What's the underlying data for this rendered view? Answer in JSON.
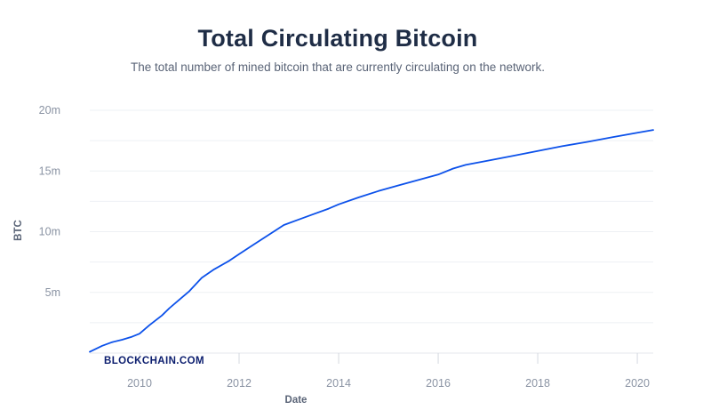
{
  "header": {
    "title": "Total Circulating Bitcoin",
    "subtitle": "The total number of mined bitcoin that are currently circulating on the network."
  },
  "watermark": "BLOCKCHAIN.COM",
  "chart_data": {
    "type": "line",
    "title": "Total Circulating Bitcoin",
    "subtitle": "The total number of mined bitcoin that are currently circulating on the network.",
    "xlabel": "Date",
    "ylabel": "BTC",
    "xlim": [
      2009.0,
      2020.32
    ],
    "ylim": [
      0,
      20000000
    ],
    "x_ticks": [
      {
        "value": 2010,
        "label": "2010"
      },
      {
        "value": 2012,
        "label": "2012"
      },
      {
        "value": 2014,
        "label": "2014"
      },
      {
        "value": 2016,
        "label": "2016"
      },
      {
        "value": 2018,
        "label": "2018"
      },
      {
        "value": 2020,
        "label": "2020"
      }
    ],
    "y_ticks": [
      {
        "value": 5000000,
        "label": "5m"
      },
      {
        "value": 10000000,
        "label": "10m"
      },
      {
        "value": 15000000,
        "label": "15m"
      },
      {
        "value": 20000000,
        "label": "20m"
      }
    ],
    "grid": true,
    "line_color": "#0c51ea",
    "series": [
      {
        "x": [
          2009.0,
          2009.25,
          2009.45,
          2009.65,
          2009.85,
          2010.0,
          2010.2,
          2010.45,
          2010.6,
          2010.8,
          2011.0,
          2011.25,
          2011.5,
          2011.8,
          2012.0,
          2012.3,
          2012.6,
          2012.9,
          2013.2,
          2013.5,
          2013.8,
          2014.0,
          2014.4,
          2014.8,
          2015.2,
          2015.6,
          2016.0,
          2016.3,
          2016.55,
          2017.0,
          2017.5,
          2018.0,
          2018.5,
          2019.0,
          2019.5,
          2020.0,
          2020.32
        ],
        "y": [
          100000,
          600000,
          900000,
          1100000,
          1350000,
          1600000,
          2300000,
          3100000,
          3700000,
          4400000,
          5100000,
          6200000,
          6900000,
          7600000,
          8150000,
          8950000,
          9750000,
          10550000,
          11000000,
          11450000,
          11900000,
          12250000,
          12820000,
          13350000,
          13810000,
          14260000,
          14700000,
          15200000,
          15500000,
          15850000,
          16250000,
          16650000,
          17050000,
          17400000,
          17780000,
          18150000,
          18380000
        ]
      }
    ]
  }
}
